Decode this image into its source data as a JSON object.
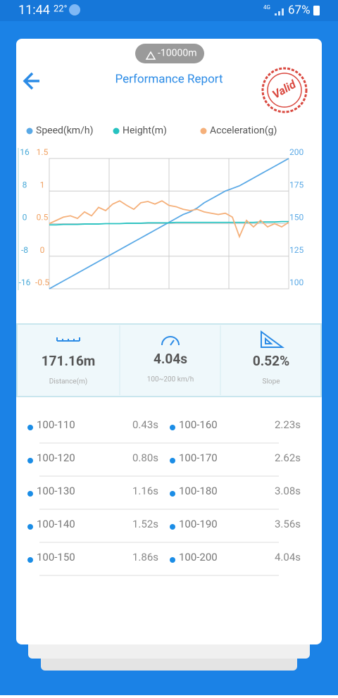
{
  "status_bar": {
    "time": "11:44",
    "temp": "22°",
    "network": "4G",
    "battery": "67%"
  },
  "header": {
    "altitude": "-10000m",
    "title": "Performance Report",
    "stamp": "Valid"
  },
  "chart_data": {
    "type": "line",
    "categories": [
      null,
      null,
      null,
      null,
      null,
      null,
      null,
      null,
      null,
      null,
      null,
      null,
      null,
      null,
      null,
      null,
      null,
      null,
      null,
      null,
      null,
      null,
      null,
      null,
      null,
      null,
      null,
      null,
      null,
      null,
      null,
      null,
      null,
      null,
      null
    ],
    "series": [
      {
        "name": "Speed(km/h)",
        "color": "#5aa9e6",
        "axis": "y3",
        "values": [
          100,
          103,
          106,
          109,
          112,
          115,
          118,
          121,
          124,
          127,
          130,
          133,
          136,
          139,
          142,
          145,
          148,
          151,
          154,
          157,
          159,
          162,
          166,
          169,
          172,
          175,
          177,
          179,
          182,
          185,
          188,
          191,
          194,
          197,
          200
        ]
      },
      {
        "name": "Height(m)",
        "color": "#26c2c0",
        "axis": "y",
        "values": [
          -0.3,
          -0.3,
          -0.2,
          -0.2,
          -0.2,
          -0.1,
          -0.1,
          -0.1,
          0,
          0,
          0,
          0.1,
          0.1,
          0.1,
          0.2,
          0.2,
          0.2,
          0.2,
          0.3,
          0.3,
          0.3,
          0.3,
          0.3,
          0.3,
          0.3,
          0.3,
          0.3,
          0.3,
          0.3,
          0.3,
          0.4,
          0.4,
          0.4,
          0.5,
          0.5
        ]
      },
      {
        "name": "Acceleration(g)",
        "color": "#f5b07a",
        "axis": "y2",
        "values": [
          0.5,
          0.55,
          0.6,
          0.62,
          0.58,
          0.68,
          0.62,
          0.75,
          0.7,
          0.8,
          0.85,
          0.78,
          0.72,
          0.82,
          0.84,
          0.8,
          0.85,
          0.78,
          0.76,
          0.72,
          0.7,
          0.72,
          0.68,
          0.66,
          0.64,
          0.66,
          0.6,
          0.3,
          0.55,
          0.45,
          0.55,
          0.45,
          0.5,
          0.45,
          0.52
        ]
      }
    ],
    "ylim": [
      -16,
      16
    ],
    "yticks": [
      16,
      8,
      0,
      -8,
      -16
    ],
    "y2lim": [
      -0.5,
      1.5
    ],
    "y2ticks": [
      1.5,
      1,
      0.5,
      0,
      -0.5
    ],
    "y3lim": [
      100,
      200
    ],
    "y3ticks": [
      200,
      175,
      150,
      125,
      100
    ],
    "grid": true
  },
  "stats": [
    {
      "value": "171.16m",
      "label": "Distance(m)"
    },
    {
      "value": "4.04s",
      "label": "100~200 km/h"
    },
    {
      "value": "0.52%",
      "label": "Slope"
    }
  ],
  "splits": [
    {
      "range": "100-110",
      "time": "0.43s"
    },
    {
      "range": "100-120",
      "time": "0.80s"
    },
    {
      "range": "100-130",
      "time": "1.16s"
    },
    {
      "range": "100-140",
      "time": "1.52s"
    },
    {
      "range": "100-150",
      "time": "1.86s"
    },
    {
      "range": "100-160",
      "time": "2.23s"
    },
    {
      "range": "100-170",
      "time": "2.62s"
    },
    {
      "range": "100-180",
      "time": "3.08s"
    },
    {
      "range": "100-190",
      "time": "3.56s"
    },
    {
      "range": "100-200",
      "time": "4.04s"
    }
  ]
}
